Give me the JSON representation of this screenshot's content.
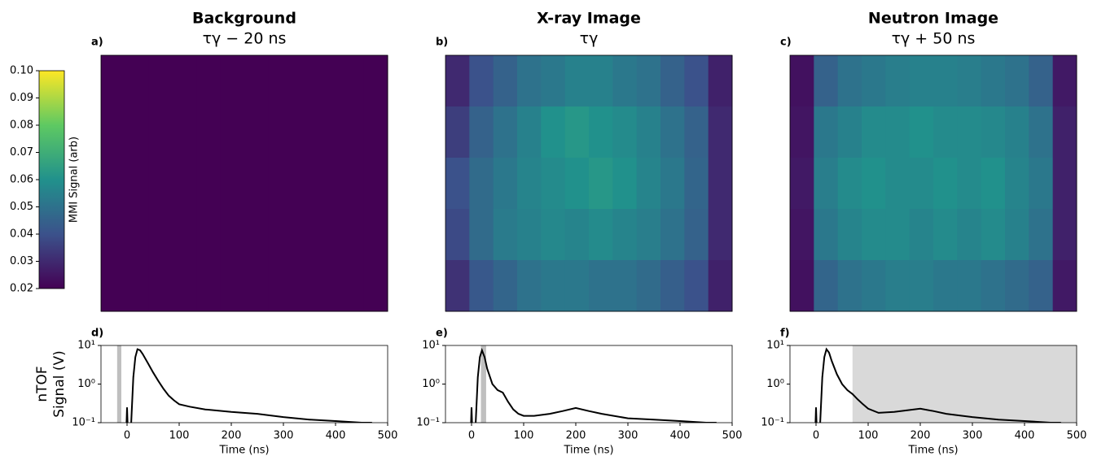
{
  "colorbar": {
    "label": "MMI Signal (arb)",
    "cmap": "viridis",
    "clim": [
      0.02,
      0.1
    ],
    "ticks": [
      0.02,
      0.03,
      0.04,
      0.05,
      0.06,
      0.07,
      0.08,
      0.09,
      {
        "value": 0.1,
        "label": "0.10"
      }
    ]
  },
  "chart_data": [
    {
      "type": "heatmap",
      "title": "Background",
      "subtitle": "τγ − 20 ns",
      "panel": "a)",
      "values": [
        [
          0.02,
          0.02,
          0.02,
          0.02,
          0.02,
          0.02,
          0.02,
          0.02,
          0.02,
          0.02,
          0.02,
          0.02
        ],
        [
          0.02,
          0.02,
          0.02,
          0.02,
          0.02,
          0.02,
          0.02,
          0.02,
          0.02,
          0.02,
          0.02,
          0.02
        ],
        [
          0.02,
          0.02,
          0.02,
          0.02,
          0.02,
          0.02,
          0.02,
          0.02,
          0.02,
          0.02,
          0.02,
          0.02
        ],
        [
          0.02,
          0.02,
          0.02,
          0.02,
          0.02,
          0.02,
          0.02,
          0.02,
          0.02,
          0.02,
          0.02,
          0.02
        ],
        [
          0.02,
          0.02,
          0.02,
          0.02,
          0.02,
          0.02,
          0.02,
          0.02,
          0.02,
          0.02,
          0.02,
          0.02
        ]
      ]
    },
    {
      "type": "heatmap",
      "title": "X-ray Image",
      "subtitle": "τγ",
      "panel": "b)",
      "values": [
        [
          0.03,
          0.04,
          0.045,
          0.05,
          0.052,
          0.055,
          0.055,
          0.052,
          0.05,
          0.045,
          0.04,
          0.028
        ],
        [
          0.035,
          0.045,
          0.05,
          0.055,
          0.06,
          0.062,
          0.06,
          0.058,
          0.055,
          0.05,
          0.045,
          0.03
        ],
        [
          0.04,
          0.048,
          0.052,
          0.056,
          0.058,
          0.06,
          0.062,
          0.06,
          0.056,
          0.052,
          0.046,
          0.03
        ],
        [
          0.038,
          0.048,
          0.053,
          0.055,
          0.057,
          0.056,
          0.058,
          0.056,
          0.054,
          0.05,
          0.045,
          0.03
        ],
        [
          0.032,
          0.042,
          0.046,
          0.05,
          0.052,
          0.052,
          0.05,
          0.05,
          0.048,
          0.044,
          0.04,
          0.028
        ]
      ]
    },
    {
      "type": "heatmap",
      "title": "Neutron Image",
      "subtitle": "τγ + 50 ns",
      "panel": "c)",
      "values": [
        [
          0.024,
          0.045,
          0.05,
          0.052,
          0.054,
          0.055,
          0.055,
          0.054,
          0.052,
          0.05,
          0.045,
          0.026
        ],
        [
          0.025,
          0.052,
          0.055,
          0.058,
          0.058,
          0.06,
          0.058,
          0.058,
          0.057,
          0.055,
          0.05,
          0.028
        ],
        [
          0.026,
          0.054,
          0.058,
          0.06,
          0.058,
          0.058,
          0.06,
          0.058,
          0.06,
          0.056,
          0.052,
          0.028
        ],
        [
          0.025,
          0.052,
          0.056,
          0.058,
          0.058,
          0.056,
          0.058,
          0.056,
          0.058,
          0.055,
          0.05,
          0.028
        ],
        [
          0.024,
          0.046,
          0.05,
          0.052,
          0.054,
          0.054,
          0.052,
          0.052,
          0.05,
          0.048,
          0.045,
          0.026
        ]
      ]
    },
    {
      "type": "line",
      "panel": "d)",
      "xlabel": "Time (ns)",
      "ylabel": [
        "nTOF",
        "Signal (V)"
      ],
      "log_y": true,
      "color": "#000000",
      "span_color": "#bfbfbf",
      "xlim": [
        -50,
        500
      ],
      "xticks": [
        0,
        100,
        200,
        300,
        400,
        500
      ],
      "ylim": [
        0.1,
        10
      ],
      "yticks": [
        {
          "value": 0.1,
          "label": "10⁻¹"
        },
        {
          "value": 1,
          "label": "10⁰"
        },
        {
          "value": 10,
          "label": "10¹"
        }
      ],
      "spans": [
        [
          -19,
          -11
        ]
      ],
      "x": [
        -1,
        0,
        1,
        5,
        8,
        12,
        16,
        20,
        25,
        30,
        40,
        50,
        60,
        70,
        80,
        90,
        100,
        120,
        150,
        200,
        250,
        300,
        350,
        400,
        450,
        470
      ],
      "values": [
        0.1,
        0.25,
        0.1,
        null,
        0.1,
        1.5,
        5,
        8,
        7.5,
        6,
        3.5,
        2,
        1.2,
        0.75,
        0.5,
        0.38,
        0.3,
        0.26,
        0.22,
        0.19,
        0.17,
        0.14,
        0.12,
        0.11,
        0.1,
        0.1
      ]
    },
    {
      "type": "line",
      "panel": "e)",
      "xlabel": "Time (ns)",
      "log_y": true,
      "color": "#000000",
      "span_color": "#bfbfbf",
      "xlim": [
        -50,
        500
      ],
      "xticks": [
        0,
        100,
        200,
        300,
        400,
        500
      ],
      "ylim": [
        0.1,
        10
      ],
      "yticks": [
        {
          "value": 0.1,
          "label": "10⁻¹"
        },
        {
          "value": 1,
          "label": "10⁰"
        },
        {
          "value": 10,
          "label": "10¹"
        }
      ],
      "spans": [
        [
          18,
          28
        ]
      ],
      "x": [
        -1,
        0,
        1,
        5,
        8,
        12,
        16,
        20,
        25,
        30,
        40,
        50,
        60,
        70,
        80,
        90,
        100,
        120,
        150,
        175,
        200,
        225,
        250,
        300,
        350,
        400,
        450,
        470
      ],
      "values": [
        0.1,
        0.25,
        0.1,
        null,
        0.1,
        1.5,
        5,
        7.5,
        5,
        2.5,
        1.0,
        0.7,
        0.6,
        0.35,
        0.22,
        0.17,
        0.15,
        0.15,
        0.17,
        0.2,
        0.24,
        0.2,
        0.17,
        0.13,
        0.12,
        0.11,
        0.1,
        0.1
      ]
    },
    {
      "type": "line",
      "panel": "f)",
      "xlabel": "Time (ns)",
      "log_y": true,
      "color": "#000000",
      "span_color": "#d9d9d9",
      "xlim": [
        -50,
        500
      ],
      "xticks": [
        0,
        100,
        200,
        300,
        400,
        500
      ],
      "ylim": [
        0.1,
        10
      ],
      "yticks": [
        {
          "value": 0.1,
          "label": "10⁻¹"
        },
        {
          "value": 1,
          "label": "10⁰"
        },
        {
          "value": 10,
          "label": "10¹"
        }
      ],
      "spans": [
        [
          70,
          500
        ]
      ],
      "x": [
        -1,
        0,
        1,
        5,
        8,
        12,
        16,
        20,
        25,
        30,
        40,
        50,
        60,
        70,
        80,
        90,
        100,
        120,
        150,
        175,
        200,
        225,
        250,
        300,
        350,
        400,
        450,
        470
      ],
      "values": [
        0.1,
        0.25,
        0.1,
        null,
        0.1,
        1.5,
        5,
        8,
        6.5,
        4,
        1.8,
        1.0,
        0.7,
        0.55,
        0.4,
        0.3,
        0.23,
        0.18,
        0.19,
        0.21,
        0.23,
        0.2,
        0.17,
        0.14,
        0.12,
        0.11,
        0.1,
        0.1
      ]
    }
  ]
}
